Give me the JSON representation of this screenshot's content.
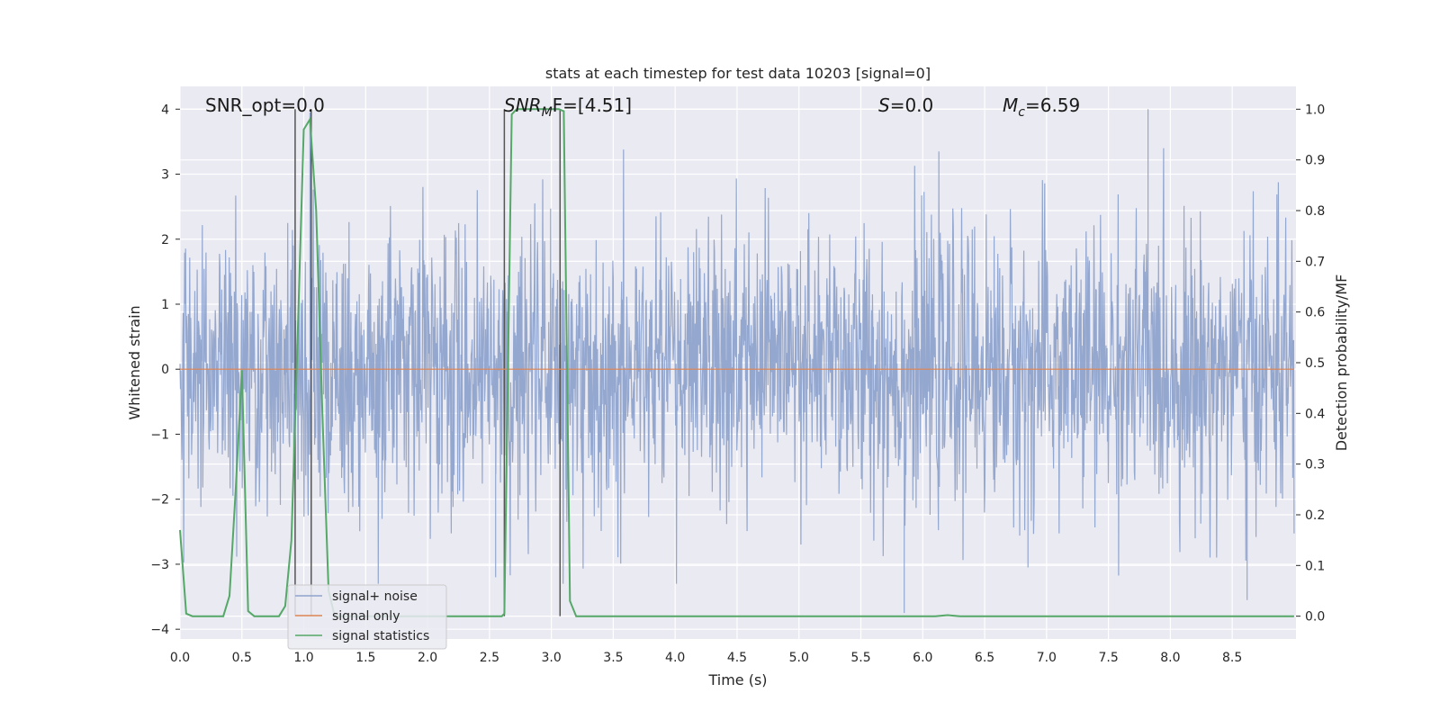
{
  "chart_data": {
    "type": "line",
    "title": "stats at each timestep for test data 10203 [signal=0]",
    "xlabel": "Time (s)",
    "ylabel": "Whitened strain",
    "y2label": "Detection probability/MF",
    "xlim": [
      0,
      9
    ],
    "ylim": [
      -4.15,
      4.35
    ],
    "y2lim": [
      -0.045,
      1.045
    ],
    "xticks": [
      "0.0",
      "0.5",
      "1.0",
      "1.5",
      "2.0",
      "2.5",
      "3.0",
      "3.5",
      "4.0",
      "4.5",
      "5.0",
      "5.5",
      "6.0",
      "6.5",
      "7.0",
      "7.5",
      "8.0",
      "8.5"
    ],
    "yticks": [
      "4",
      "3",
      "2",
      "1",
      "0",
      "−1",
      "−2",
      "−3",
      "−4"
    ],
    "y2ticks": [
      "1.0",
      "0.9",
      "0.8",
      "0.7",
      "0.6",
      "0.5",
      "0.4",
      "0.3",
      "0.2",
      "0.1",
      "0.0"
    ],
    "grid": true,
    "legend_position": "lower-left",
    "annotations": {
      "snr_opt": "SNR_opt=0.0",
      "snr_mf_sym": "SNR",
      "snr_mf_sub": "M",
      "snr_mf_rest": "F=[4.51]",
      "s_sym": "S",
      "s_rest": "=0.0",
      "mc_sym": "M",
      "mc_sub": "c",
      "mc_rest": "=6.59"
    },
    "series": [
      {
        "name": "signal+ noise",
        "color": "#8fa3cc",
        "kind": "noise",
        "envelope": "approx. |strain| up to 2.0–2.8 typical, peaks near 4.0 at t≈7.8s and −3.75 at t≈5.85s",
        "peaks": [
          [
            7.82,
            4.0
          ],
          [
            5.85,
            -3.75
          ],
          [
            8.62,
            -3.55
          ],
          [
            2.55,
            -3.2
          ],
          [
            6.85,
            -3.05
          ],
          [
            1.05,
            3.95
          ]
        ]
      },
      {
        "name": "signal only",
        "color": "#dd8452",
        "values_desc": "constant zero",
        "x": [
          0,
          9
        ],
        "y": [
          0,
          0
        ]
      },
      {
        "name": "signal statistics",
        "color": "#55a868",
        "axis": "right",
        "x": [
          0.0,
          0.05,
          0.1,
          0.15,
          0.2,
          0.25,
          0.3,
          0.35,
          0.4,
          0.45,
          0.5,
          0.55,
          0.6,
          0.65,
          0.7,
          0.75,
          0.8,
          0.85,
          0.9,
          0.95,
          1.0,
          1.05,
          1.1,
          1.15,
          1.2,
          1.25,
          1.3,
          1.35,
          1.4,
          1.5,
          1.6,
          1.7,
          1.8,
          1.9,
          2.0,
          2.1,
          2.2,
          2.3,
          2.4,
          2.5,
          2.55,
          2.6,
          2.62,
          2.68,
          2.72,
          2.8,
          2.9,
          3.0,
          3.06,
          3.1,
          3.15,
          3.2,
          3.3,
          3.5,
          4.0,
          4.5,
          5.0,
          5.5,
          6.0,
          6.1,
          6.2,
          6.3,
          6.5,
          7.0,
          7.5,
          8.0,
          8.5,
          9.0
        ],
        "y": [
          0.17,
          0.005,
          0.0,
          0.0,
          0.0,
          0.0,
          0.0,
          0.0,
          0.04,
          0.25,
          0.485,
          0.01,
          0.0,
          0.0,
          0.0,
          0.0,
          0.0,
          0.02,
          0.15,
          0.55,
          0.96,
          0.98,
          0.8,
          0.4,
          0.05,
          0.0,
          0.0,
          0.0,
          0.0,
          0.0,
          0.0,
          0.0,
          0.0,
          0.0,
          0.0,
          0.0,
          0.0,
          0.0,
          0.0,
          0.0,
          0.0,
          0.0,
          0.005,
          0.99,
          1.0,
          1.0,
          1.0,
          1.0,
          1.0,
          0.996,
          0.03,
          0.0,
          0.0,
          0.0,
          0.0,
          0.0,
          0.0,
          0.0,
          0.0,
          0.0,
          0.002,
          0.0,
          0.0,
          0.0,
          0.0,
          0.0,
          0.0,
          0.0
        ]
      }
    ],
    "vertical_lines_x": [
      0.93,
      1.06,
      2.62,
      3.07
    ]
  }
}
